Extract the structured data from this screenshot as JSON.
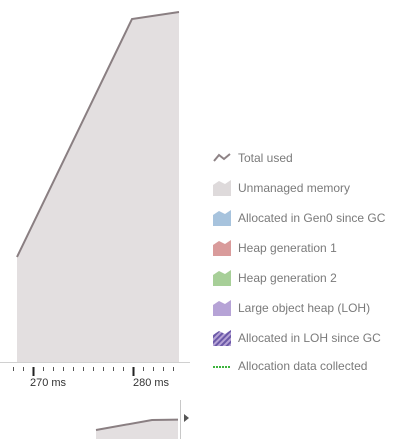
{
  "chart_data": {
    "type": "area",
    "x_unit": "ms",
    "x_ticks": [
      "270 ms",
      "280 ms"
    ],
    "series": [
      {
        "name": "Unmanaged memory",
        "color": "#e3dfe0",
        "values": [
          0.3,
          0.98,
          1.0
        ]
      },
      {
        "name": "Total used",
        "color": "#8a7f82",
        "values": [
          0.3,
          0.98,
          1.0
        ]
      }
    ],
    "x_time_ms": [
      268.4,
      279.9,
      284.6
    ]
  },
  "legend": {
    "items": [
      {
        "label": "Total used",
        "icon": "line-icon",
        "color": "#8e8386"
      },
      {
        "label": "Unmanaged memory",
        "icon": "area-icon",
        "color": "#dedadb"
      },
      {
        "label": "Allocated in Gen0 since GC",
        "icon": "area-icon",
        "color": "#a7c3dd"
      },
      {
        "label": "Heap generation 1",
        "icon": "area-icon",
        "color": "#d99b9b"
      },
      {
        "label": "Heap generation 2",
        "icon": "area-icon",
        "color": "#a7cf98"
      },
      {
        "label": "Large object heap (LOH)",
        "icon": "area-icon",
        "color": "#b6a3d6"
      },
      {
        "label": "Allocated in LOH since GC",
        "icon": "hatched-area-icon",
        "color": "#6b59a8"
      },
      {
        "label": "Allocation data collected",
        "icon": "dashed-line-icon",
        "color": "#3db43d"
      }
    ]
  },
  "overview": {
    "values": [
      0.0,
      0.6,
      0.62
    ]
  }
}
